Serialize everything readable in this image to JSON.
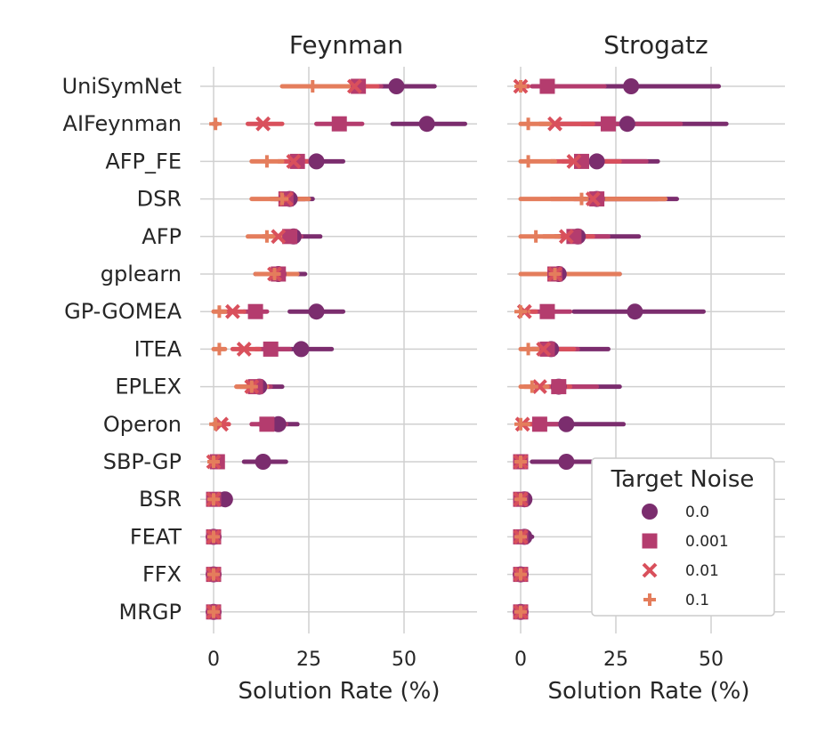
{
  "legend": {
    "title": "Target Noise",
    "entries": [
      {
        "label": "0.0",
        "color": "#7b2d6e",
        "marker": "circle"
      },
      {
        "label": "0.001",
        "color": "#b43c6e",
        "marker": "square"
      },
      {
        "label": "0.01",
        "color": "#d9505c",
        "marker": "x"
      },
      {
        "label": "0.1",
        "color": "#e47d5c",
        "marker": "plus"
      }
    ]
  },
  "chart_data": [
    {
      "type": "scatter",
      "title": "Feynman",
      "xlabel": "Solution Rate (%)",
      "ylabel": "",
      "xlim": [
        -4,
        70
      ],
      "xticks": [
        0,
        25,
        50
      ],
      "grid": true,
      "categories": [
        "UniSymNet",
        "AIFeynman",
        "AFP_FE",
        "DSR",
        "AFP",
        "gplearn",
        "GP-GOMEA",
        "ITEA",
        "EPLEX",
        "Operon",
        "SBP-GP",
        "BSR",
        "FEAT",
        "FFX",
        "MRGP"
      ],
      "series": [
        {
          "name": "0.0",
          "values": [
            48,
            56,
            27,
            20,
            21,
            17,
            27,
            23,
            12,
            17,
            13,
            3,
            0,
            0,
            0
          ],
          "low": [
            40,
            47,
            22,
            17,
            18,
            11,
            20,
            17,
            8,
            12,
            8,
            0,
            0,
            0,
            0
          ],
          "high": [
            58,
            66,
            34,
            26,
            28,
            24,
            34,
            31,
            18,
            22,
            19,
            4,
            0,
            0,
            0
          ]
        },
        {
          "name": "0.001",
          "values": [
            38,
            33,
            22,
            19,
            20,
            17,
            11,
            15,
            11,
            14,
            1,
            0,
            0,
            0,
            0
          ],
          "low": [
            31,
            27,
            19,
            16,
            17,
            12,
            8,
            11,
            7,
            10,
            0,
            0,
            0,
            0,
            0
          ],
          "high": [
            44,
            39,
            26,
            24,
            23,
            22,
            14,
            20,
            15,
            19,
            2,
            0,
            0,
            0,
            0
          ]
        },
        {
          "name": "0.01",
          "values": [
            37,
            13,
            21,
            19,
            17,
            16,
            5,
            8,
            10,
            2,
            0,
            0,
            0,
            0,
            0
          ],
          "low": [
            31,
            9,
            17,
            15,
            13,
            12,
            2,
            5,
            6,
            0,
            0,
            0,
            0,
            0,
            0
          ],
          "high": [
            43,
            18,
            25,
            24,
            21,
            21,
            8,
            12,
            14,
            4,
            0,
            0,
            0,
            0,
            0
          ]
        },
        {
          "name": "0.1",
          "values": [
            26,
            0.5,
            14,
            18,
            14,
            16,
            1.5,
            1.5,
            10,
            0.5,
            0,
            0,
            0,
            0,
            0
          ],
          "low": [
            18,
            0,
            10,
            10,
            9,
            11,
            0,
            0,
            6,
            0,
            0,
            0,
            0,
            0,
            0
          ],
          "high": [
            38,
            1,
            18,
            25,
            18,
            22,
            3,
            3,
            14,
            1,
            0,
            0,
            0,
            0,
            0
          ]
        }
      ]
    },
    {
      "type": "scatter",
      "title": "Strogatz",
      "xlabel": "Solution Rate (%)",
      "ylabel": "",
      "xlim": [
        -4,
        70
      ],
      "xticks": [
        0,
        25,
        50
      ],
      "grid": true,
      "categories": [
        "UniSymNet",
        "AIFeynman",
        "AFP_FE",
        "DSR",
        "AFP",
        "gplearn",
        "GP-GOMEA",
        "ITEA",
        "EPLEX",
        "Operon",
        "SBP-GP",
        "BSR",
        "FEAT",
        "FFX",
        "MRGP"
      ],
      "series": [
        {
          "name": "0.0",
          "values": [
            29,
            28,
            20,
            20,
            15,
            10,
            30,
            8,
            10,
            12,
            12,
            1,
            1,
            0,
            0
          ],
          "low": [
            7,
            9,
            14,
            16,
            10,
            6,
            14,
            3,
            4,
            5,
            3,
            0,
            0,
            0,
            0
          ],
          "high": [
            52,
            54,
            36,
            41,
            31,
            26,
            48,
            23,
            26,
            27,
            22,
            2,
            3,
            0,
            0
          ]
        },
        {
          "name": "0.001",
          "values": [
            7,
            23,
            16,
            20,
            14,
            9,
            7,
            7,
            10,
            5,
            0,
            0,
            0,
            0,
            0
          ],
          "low": [
            3,
            16,
            11,
            14,
            9,
            4,
            3,
            3,
            4,
            1,
            0,
            0,
            0,
            0,
            0
          ],
          "high": [
            22,
            42,
            33,
            36,
            23,
            19,
            13,
            15,
            20,
            12,
            0,
            0,
            0,
            0,
            0
          ]
        },
        {
          "name": "0.01",
          "values": [
            0,
            9,
            14,
            19,
            12,
            9,
            1,
            6,
            5,
            0.5,
            0,
            0,
            0,
            0,
            0
          ],
          "low": [
            0,
            5,
            8,
            8,
            6,
            4,
            0,
            2,
            1,
            0,
            0,
            0,
            0,
            0,
            0
          ],
          "high": [
            2,
            19,
            26,
            38,
            19,
            18,
            4,
            14,
            13,
            5,
            0,
            0,
            0,
            0,
            0
          ]
        },
        {
          "name": "0.1",
          "values": [
            0,
            2,
            2,
            16,
            4,
            9,
            0,
            2,
            3,
            0,
            0,
            0,
            0,
            0,
            0
          ],
          "low": [
            0,
            0,
            0,
            0,
            0,
            0,
            0,
            0,
            0,
            0,
            0,
            0,
            0,
            0,
            0
          ],
          "high": [
            1,
            9,
            9,
            38,
            10,
            26,
            2,
            8,
            7,
            2,
            0,
            0,
            0,
            0,
            0
          ]
        }
      ]
    }
  ]
}
